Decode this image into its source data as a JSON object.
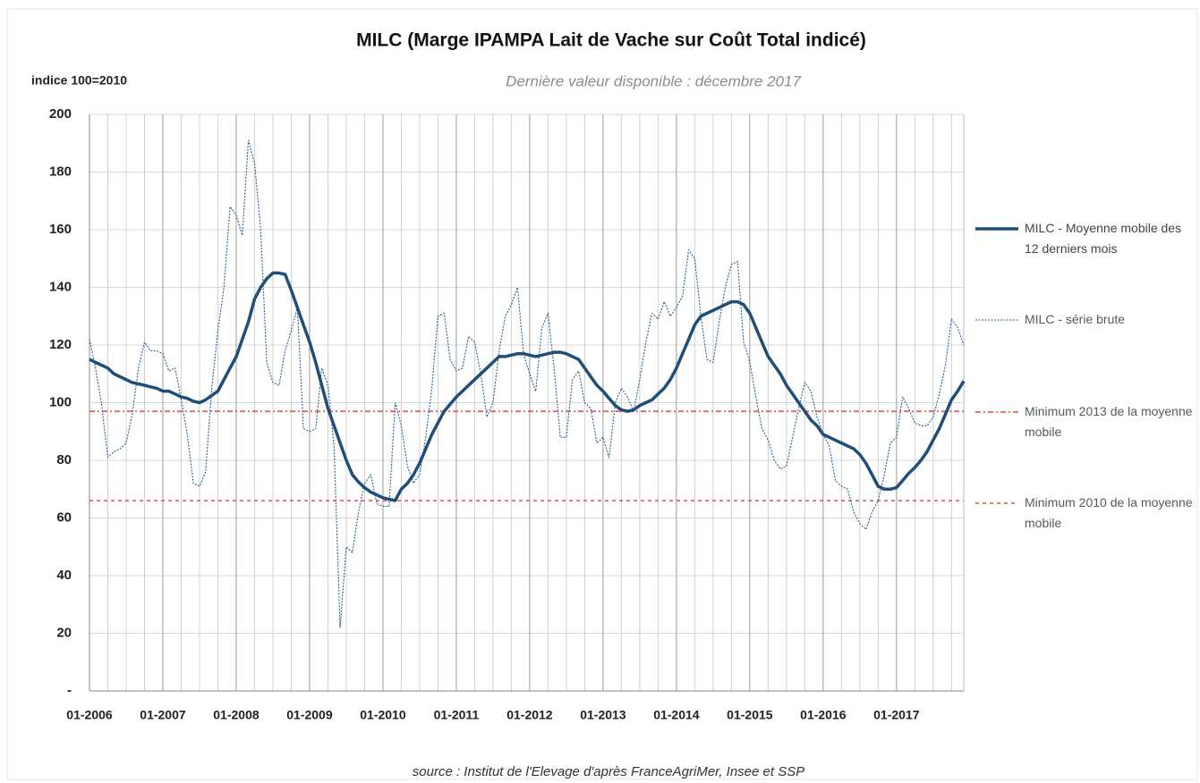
{
  "chart_data": {
    "type": "line",
    "title": "MILC (Marge IPAMPA Lait de Vache sur Coût Total indicé)",
    "subtitle": "Dernière valeur disponible : décembre 2017",
    "y_label": "indice 100=2010",
    "source": "source : Institut de l'Elevage d'après FranceAgriMer, Insee et SSP",
    "categories": [
      "01-2006",
      null,
      null,
      null,
      null,
      null,
      null,
      null,
      null,
      null,
      null,
      null,
      "01-2007",
      null,
      null,
      null,
      null,
      null,
      null,
      null,
      null,
      null,
      null,
      null,
      "01-2008",
      null,
      null,
      null,
      null,
      null,
      null,
      null,
      null,
      null,
      null,
      null,
      "01-2009",
      null,
      null,
      null,
      null,
      null,
      null,
      null,
      null,
      null,
      null,
      null,
      "01-2010",
      null,
      null,
      null,
      null,
      null,
      null,
      null,
      null,
      null,
      null,
      null,
      "01-2011",
      null,
      null,
      null,
      null,
      null,
      null,
      null,
      null,
      null,
      null,
      null,
      "01-2012",
      null,
      null,
      null,
      null,
      null,
      null,
      null,
      null,
      null,
      null,
      null,
      "01-2013",
      null,
      null,
      null,
      null,
      null,
      null,
      null,
      null,
      null,
      null,
      null,
      "01-2014",
      null,
      null,
      null,
      null,
      null,
      null,
      null,
      null,
      null,
      null,
      null,
      "01-2015",
      null,
      null,
      null,
      null,
      null,
      null,
      null,
      null,
      null,
      null,
      null,
      "01-2016",
      null,
      null,
      null,
      null,
      null,
      null,
      null,
      null,
      null,
      null,
      null,
      "01-2017",
      null,
      null,
      null,
      null,
      null,
      null,
      null,
      null,
      null,
      null,
      null
    ],
    "series": [
      {
        "name": "MILC - Moyenne mobile des 12 derniers mois",
        "color": "#1f4e79",
        "style": "solid",
        "values": [
          115,
          114,
          113,
          112,
          110,
          109,
          108,
          107,
          106.5,
          106,
          105.5,
          105,
          104,
          104,
          103,
          102,
          101.5,
          100.5,
          100,
          101,
          102.5,
          104,
          108,
          112,
          116,
          122,
          128,
          136,
          140,
          143,
          145,
          145,
          144.5,
          139,
          133,
          127,
          121,
          114,
          106,
          98,
          92,
          86,
          80,
          75,
          72.5,
          70.5,
          69,
          68,
          67,
          66.5,
          66,
          70,
          72,
          75,
          79,
          84,
          89,
          93,
          97,
          99.5,
          102,
          104,
          106,
          108,
          110,
          112,
          114,
          116,
          116,
          116.5,
          117,
          117,
          116.5,
          116,
          116.5,
          117,
          117.5,
          117.5,
          117,
          116,
          115,
          112,
          109,
          106,
          104,
          101.5,
          99,
          97.5,
          97,
          97.5,
          99,
          100,
          101,
          103,
          105,
          108,
          112,
          117,
          122,
          127,
          130,
          131,
          132,
          133,
          134,
          135,
          135,
          134,
          131,
          126,
          121,
          116,
          113,
          110,
          106,
          103,
          100,
          97,
          94,
          92,
          89,
          88,
          87,
          86,
          85,
          84,
          82,
          79,
          75,
          71,
          70,
          70,
          70.5,
          73,
          75.5,
          77.5,
          80,
          83,
          87,
          91,
          96,
          101,
          104,
          107.5
        ]
      },
      {
        "name": "MILC - série brute",
        "color": "#2e5c8a",
        "style": "dotted",
        "values": [
          122,
          112,
          99,
          81,
          83,
          84,
          86,
          96,
          112,
          121,
          118,
          118,
          117,
          111,
          112,
          101,
          89,
          72,
          71,
          76,
          105,
          125,
          140,
          168,
          165,
          158,
          191,
          183,
          160,
          114,
          107,
          106,
          118,
          125,
          133,
          91,
          90,
          91,
          112,
          106,
          85,
          22,
          50,
          48,
          62,
          72,
          75,
          65,
          64,
          64,
          100,
          92,
          78,
          72,
          75,
          88,
          105,
          130,
          131,
          115,
          111,
          112,
          123,
          121,
          110,
          95,
          100,
          118,
          130,
          134,
          140,
          117,
          110,
          104,
          126,
          131,
          112,
          88,
          88,
          108,
          111,
          100,
          98,
          86,
          88,
          81,
          100,
          105,
          102,
          97,
          108,
          121,
          131,
          129,
          135,
          130,
          133,
          137,
          153,
          150,
          130,
          115,
          114,
          128,
          140,
          148,
          149,
          121,
          114,
          102,
          91,
          87,
          80,
          77,
          78,
          88,
          98,
          107,
          104,
          95,
          89,
          85,
          73,
          71,
          70,
          62,
          58,
          56,
          62,
          66,
          75,
          86,
          88,
          102,
          98,
          93,
          92,
          92,
          95,
          103,
          113,
          129,
          126,
          120
        ]
      }
    ],
    "reference_lines": [
      {
        "name": "Minimum 2013 de la moyenne mobile",
        "value": 97,
        "color": "#e06666",
        "style": "dashdot"
      },
      {
        "name": "Minimum 2010 de la moyenne mobile",
        "value": 66,
        "color": "#e06666",
        "style": "dashed"
      }
    ],
    "ylim": [
      0,
      200
    ],
    "yticks": [
      {
        "value": 0,
        "label": "-"
      },
      20,
      40,
      60,
      80,
      100,
      120,
      140,
      160,
      180,
      200
    ],
    "grid": true,
    "legend": "right"
  }
}
